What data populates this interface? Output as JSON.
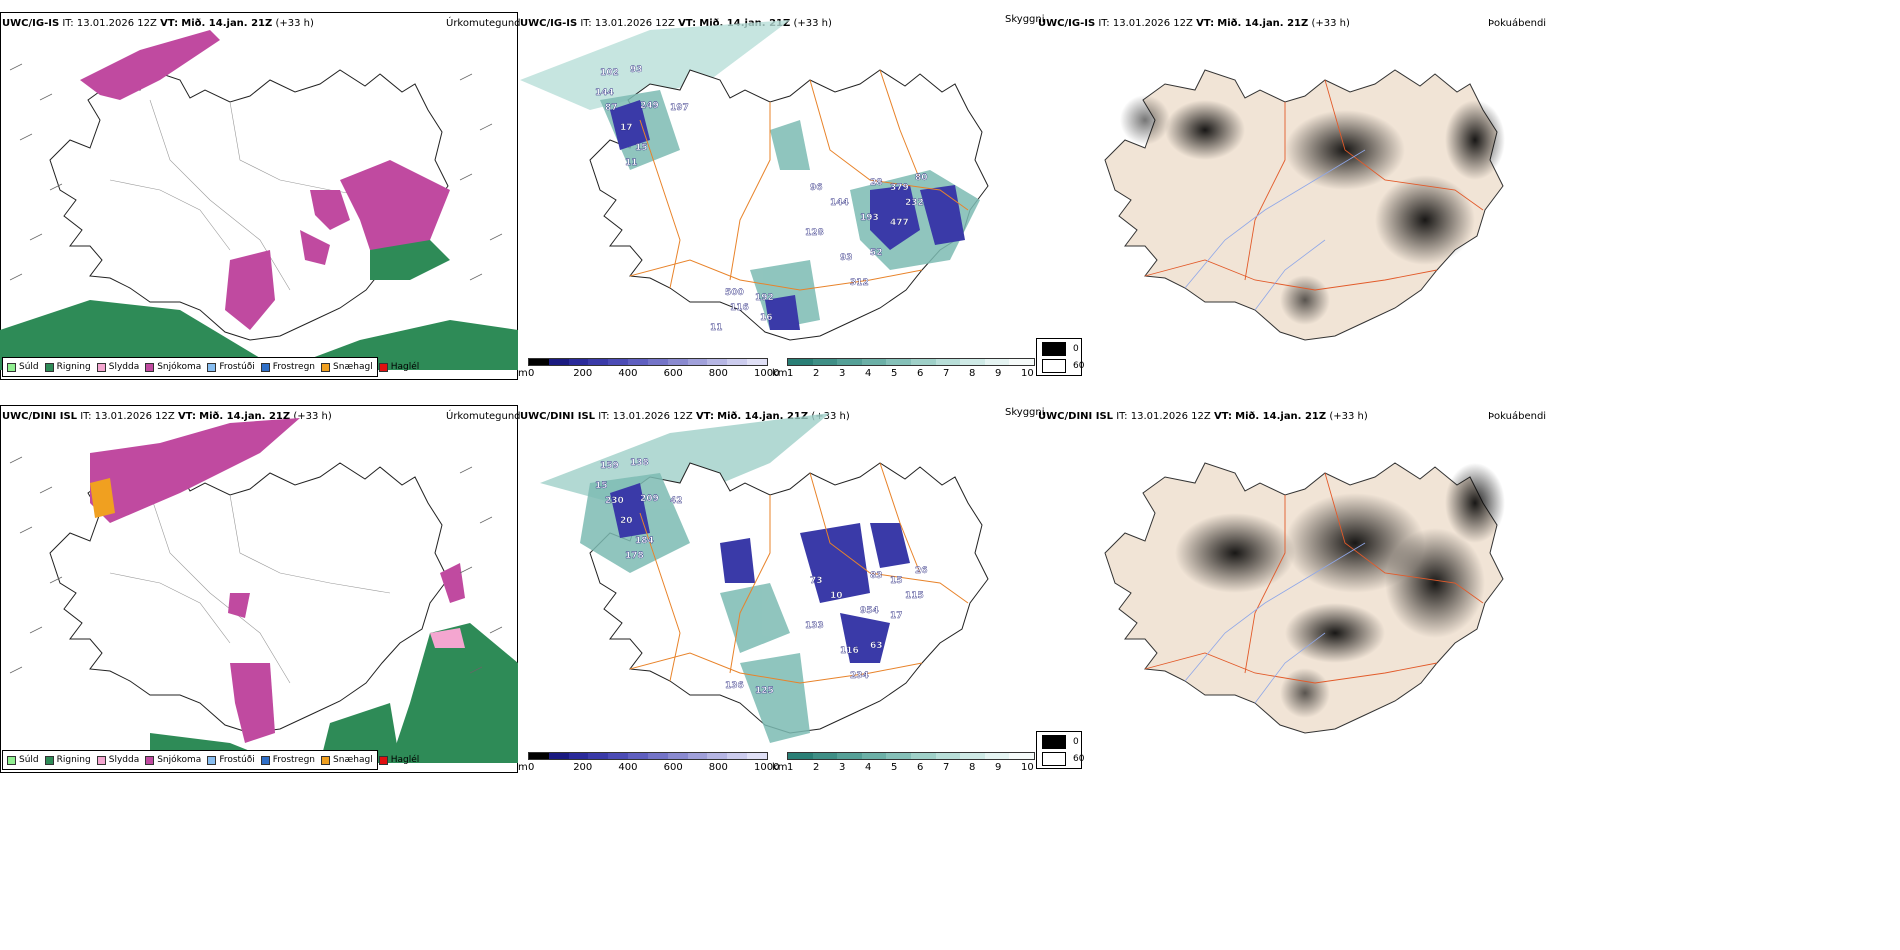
{
  "rows": [
    {
      "model": "UWC/IG-IS",
      "it_label": "IT:",
      "it": "13.01.2026 12Z",
      "vt_label": "VT:",
      "vt": "Mið. 14.jan. 21Z",
      "lead": "(+33 h)"
    },
    {
      "model": "UWC/DINI ISL",
      "it_label": "IT:",
      "it": "13.01.2026 12Z",
      "vt_label": "VT:",
      "vt": "Mið. 14.jan. 21Z",
      "lead": "(+33 h)"
    }
  ],
  "panel_titles": {
    "precip_type": "Úrkomutegund",
    "visibility": "Skyggni",
    "fog": "Þokuábendi"
  },
  "precip_legend": [
    {
      "label": "Súld",
      "color": "#90ee90"
    },
    {
      "label": "Rigning",
      "color": "#2e8b57"
    },
    {
      "label": "Slydda",
      "color": "#f4a6d0"
    },
    {
      "label": "Snjókoma",
      "color": "#c04aa0"
    },
    {
      "label": "Frostúði",
      "color": "#87bdf0"
    },
    {
      "label": "Frostregn",
      "color": "#2f6fc8"
    },
    {
      "label": "Snæhagl",
      "color": "#f0a020"
    },
    {
      "label": "Haglél",
      "color": "#e01010"
    }
  ],
  "ceiling_bar": {
    "unit": "m",
    "ticks": [
      "0",
      "200",
      "400",
      "600",
      "800",
      "1000"
    ],
    "colors": [
      "#000000",
      "#1a1a80",
      "#2a2a9a",
      "#3a3aa8",
      "#4b4bb5",
      "#5f5fc0",
      "#7474c8",
      "#8a8ad0",
      "#a0a0da",
      "#b6b6e4",
      "#ccccee",
      "#e0e0f6"
    ]
  },
  "visibility_bar": {
    "unit": "km",
    "ticks": [
      "1",
      "2",
      "3",
      "4",
      "5",
      "6",
      "7",
      "8",
      "9",
      "10"
    ],
    "colors": [
      "#2a7f76",
      "#3f8f86",
      "#55a097",
      "#6cb0a7",
      "#85c0b8",
      "#9fd0c8",
      "#b8ded8",
      "#cfeae6",
      "#e5f4f2",
      "#f6fbfa"
    ]
  },
  "fog_legend": [
    {
      "label": "0",
      "color": "#000000"
    },
    {
      "label": "60",
      "color": "#ffffff"
    }
  ],
  "map_labels": {
    "top": [
      "102",
      "93",
      "144",
      "87",
      "249",
      "197",
      "17",
      "15",
      "11",
      "96",
      "28",
      "379",
      "80",
      "144",
      "232",
      "193",
      "477",
      "128",
      "93",
      "52",
      "312",
      "500",
      "192",
      "116",
      "16",
      "11"
    ],
    "bottom": [
      "159",
      "138",
      "15",
      "230",
      "209",
      "42",
      "20",
      "184",
      "178",
      "73",
      "83",
      "15",
      "26",
      "10",
      "115",
      "954",
      "17",
      "133",
      "116",
      "63",
      "234",
      "136",
      "125"
    ]
  },
  "colors": {
    "snow": "#c04aa0",
    "rain": "#2e8b57",
    "vis_fill": "#7cbbb3",
    "ceiling": "#3a3aa8",
    "roads": "#e8832a",
    "land_fog": "#f1e4d6",
    "rivers": "#8fa7e8"
  }
}
